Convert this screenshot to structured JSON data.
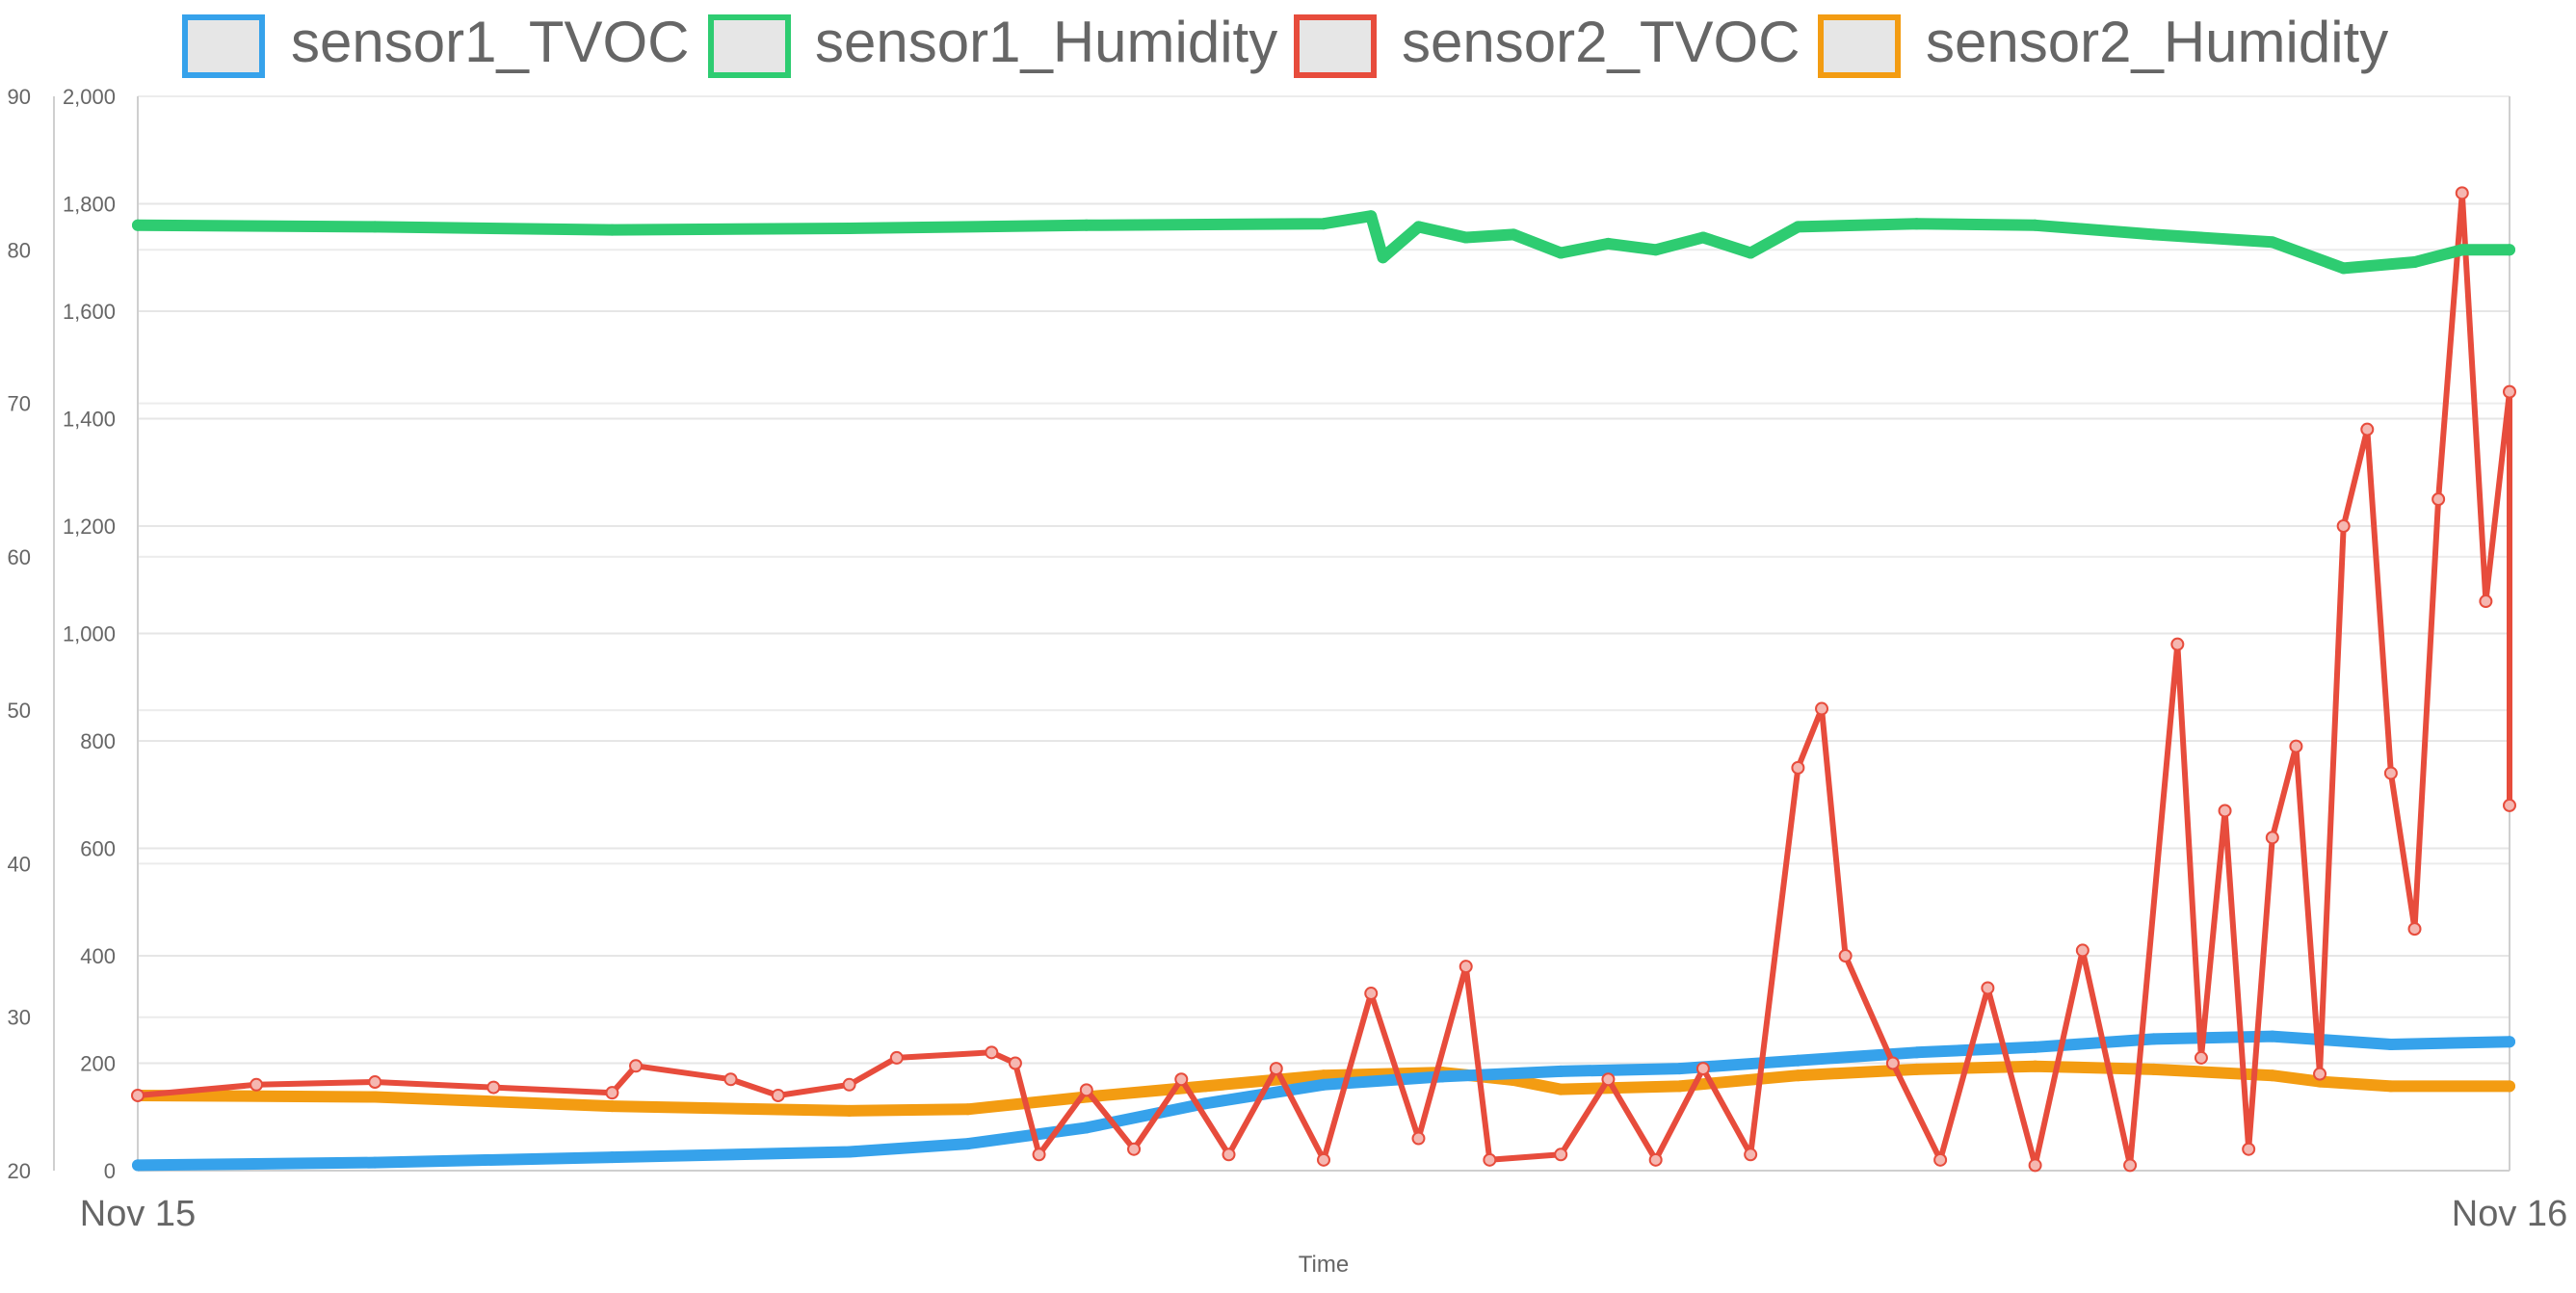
{
  "chart_data": {
    "type": "line",
    "xlabel": "Time",
    "x_ticks": [
      "Nov 15",
      "Nov 16"
    ],
    "x": [
      "Nov 15 00:00",
      "Nov 16 00:00"
    ],
    "grid": true,
    "legend_position": "top",
    "y_axes": [
      {
        "id": "left-humidity",
        "position": "left",
        "range": [
          20,
          90
        ],
        "tick_labels": [
          "20",
          "30",
          "40",
          "50",
          "60",
          "70",
          "80",
          "90"
        ]
      },
      {
        "id": "left-tvoc",
        "position": "left-inner",
        "range": [
          0,
          2000
        ],
        "tick_labels": [
          "0",
          "200",
          "400",
          "600",
          "800",
          "1,000",
          "1,200",
          "1,400",
          "1,600",
          "1,800",
          "2,000"
        ]
      }
    ],
    "series": [
      {
        "name": "sensor1_TVOC",
        "axis": "left-tvoc",
        "color": "#36a2eb",
        "points": [
          [
            0,
            10
          ],
          [
            0.1,
            15
          ],
          [
            0.2,
            25
          ],
          [
            0.3,
            35
          ],
          [
            0.35,
            50
          ],
          [
            0.4,
            80
          ],
          [
            0.45,
            125
          ],
          [
            0.5,
            160
          ],
          [
            0.55,
            175
          ],
          [
            0.6,
            185
          ],
          [
            0.65,
            190
          ],
          [
            0.7,
            205
          ],
          [
            0.75,
            220
          ],
          [
            0.8,
            230
          ],
          [
            0.85,
            245
          ],
          [
            0.9,
            250
          ],
          [
            0.95,
            235
          ],
          [
            1.0,
            240
          ]
        ]
      },
      {
        "name": "sensor1_Humidity",
        "axis": "left-humidity",
        "color": "#2ecc71",
        "points": [
          [
            0,
            81.6
          ],
          [
            0.1,
            81.5
          ],
          [
            0.2,
            81.3
          ],
          [
            0.3,
            81.4
          ],
          [
            0.4,
            81.6
          ],
          [
            0.5,
            81.7
          ],
          [
            0.52,
            82.2
          ],
          [
            0.525,
            79.5
          ],
          [
            0.54,
            81.5
          ],
          [
            0.56,
            80.8
          ],
          [
            0.58,
            81.0
          ],
          [
            0.6,
            79.8
          ],
          [
            0.62,
            80.4
          ],
          [
            0.64,
            80.0
          ],
          [
            0.66,
            80.8
          ],
          [
            0.68,
            79.8
          ],
          [
            0.7,
            81.5
          ],
          [
            0.75,
            81.7
          ],
          [
            0.8,
            81.6
          ],
          [
            0.85,
            81.0
          ],
          [
            0.9,
            80.5
          ],
          [
            0.93,
            78.8
          ],
          [
            0.96,
            79.2
          ],
          [
            0.98,
            80.0
          ],
          [
            1.0,
            80.0
          ]
        ]
      },
      {
        "name": "sensor2_TVOC",
        "axis": "left-tvoc",
        "color": "#e74c3c",
        "points": [
          [
            0,
            140
          ],
          [
            0.05,
            160
          ],
          [
            0.1,
            165
          ],
          [
            0.15,
            155
          ],
          [
            0.2,
            145
          ],
          [
            0.21,
            195
          ],
          [
            0.25,
            170
          ],
          [
            0.27,
            140
          ],
          [
            0.3,
            160
          ],
          [
            0.32,
            210
          ],
          [
            0.36,
            220
          ],
          [
            0.37,
            200
          ],
          [
            0.38,
            30
          ],
          [
            0.4,
            150
          ],
          [
            0.42,
            40
          ],
          [
            0.44,
            170
          ],
          [
            0.46,
            30
          ],
          [
            0.48,
            190
          ],
          [
            0.5,
            20
          ],
          [
            0.52,
            330
          ],
          [
            0.54,
            60
          ],
          [
            0.56,
            380
          ],
          [
            0.57,
            20
          ],
          [
            0.6,
            30
          ],
          [
            0.62,
            170
          ],
          [
            0.64,
            20
          ],
          [
            0.66,
            190
          ],
          [
            0.68,
            30
          ],
          [
            0.7,
            750
          ],
          [
            0.71,
            860
          ],
          [
            0.72,
            400
          ],
          [
            0.74,
            200
          ],
          [
            0.76,
            20
          ],
          [
            0.78,
            340
          ],
          [
            0.8,
            10
          ],
          [
            0.82,
            410
          ],
          [
            0.84,
            10
          ],
          [
            0.86,
            980
          ],
          [
            0.87,
            210
          ],
          [
            0.88,
            670
          ],
          [
            0.89,
            40
          ],
          [
            0.9,
            620
          ],
          [
            0.91,
            790
          ],
          [
            0.92,
            180
          ],
          [
            0.93,
            1200
          ],
          [
            0.94,
            1380
          ],
          [
            0.95,
            740
          ],
          [
            0.96,
            450
          ],
          [
            0.97,
            1250
          ],
          [
            0.98,
            1820
          ],
          [
            0.99,
            1060
          ],
          [
            1.0,
            1450
          ],
          [
            1.0,
            680
          ]
        ]
      },
      {
        "name": "sensor2_Humidity",
        "axis": "left-humidity",
        "color": "#f39c12",
        "points": [
          [
            0,
            24.9
          ],
          [
            0.1,
            24.8
          ],
          [
            0.2,
            24.2
          ],
          [
            0.3,
            23.9
          ],
          [
            0.35,
            24.0
          ],
          [
            0.4,
            24.8
          ],
          [
            0.45,
            25.5
          ],
          [
            0.5,
            26.2
          ],
          [
            0.55,
            26.4
          ],
          [
            0.58,
            25.9
          ],
          [
            0.6,
            25.3
          ],
          [
            0.65,
            25.5
          ],
          [
            0.7,
            26.2
          ],
          [
            0.75,
            26.6
          ],
          [
            0.8,
            26.8
          ],
          [
            0.85,
            26.6
          ],
          [
            0.9,
            26.2
          ],
          [
            0.92,
            25.8
          ],
          [
            0.95,
            25.5
          ],
          [
            1.0,
            25.5
          ]
        ]
      }
    ]
  }
}
